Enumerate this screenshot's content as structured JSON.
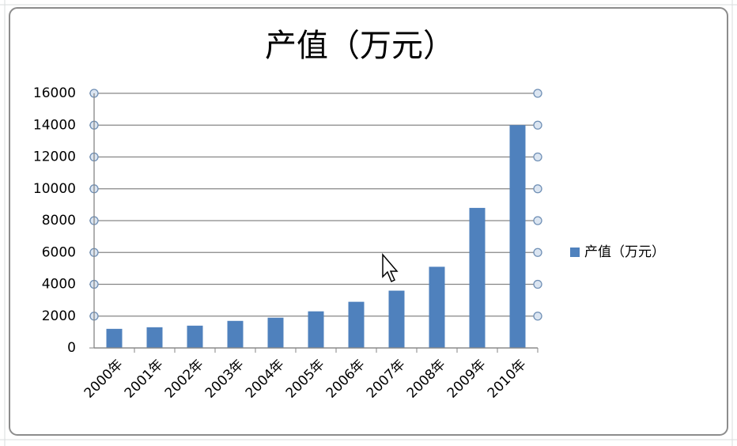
{
  "chart_data": {
    "type": "bar",
    "title": "产值（万元）",
    "categories": [
      "2000年",
      "2001年",
      "2002年",
      "2003年",
      "2004年",
      "2005年",
      "2006年",
      "2007年",
      "2008年",
      "2009年",
      "2010年"
    ],
    "series": [
      {
        "name": "产值（万元）",
        "color": "#4f81bd",
        "values": [
          1200,
          1300,
          1400,
          1700,
          1900,
          2300,
          2900,
          3600,
          5100,
          8800,
          14000
        ]
      }
    ],
    "ylim": [
      0,
      16000
    ],
    "yticks": [
      0,
      2000,
      4000,
      6000,
      8000,
      10000,
      12000,
      14000,
      16000
    ],
    "grid": true,
    "legend": "right"
  }
}
